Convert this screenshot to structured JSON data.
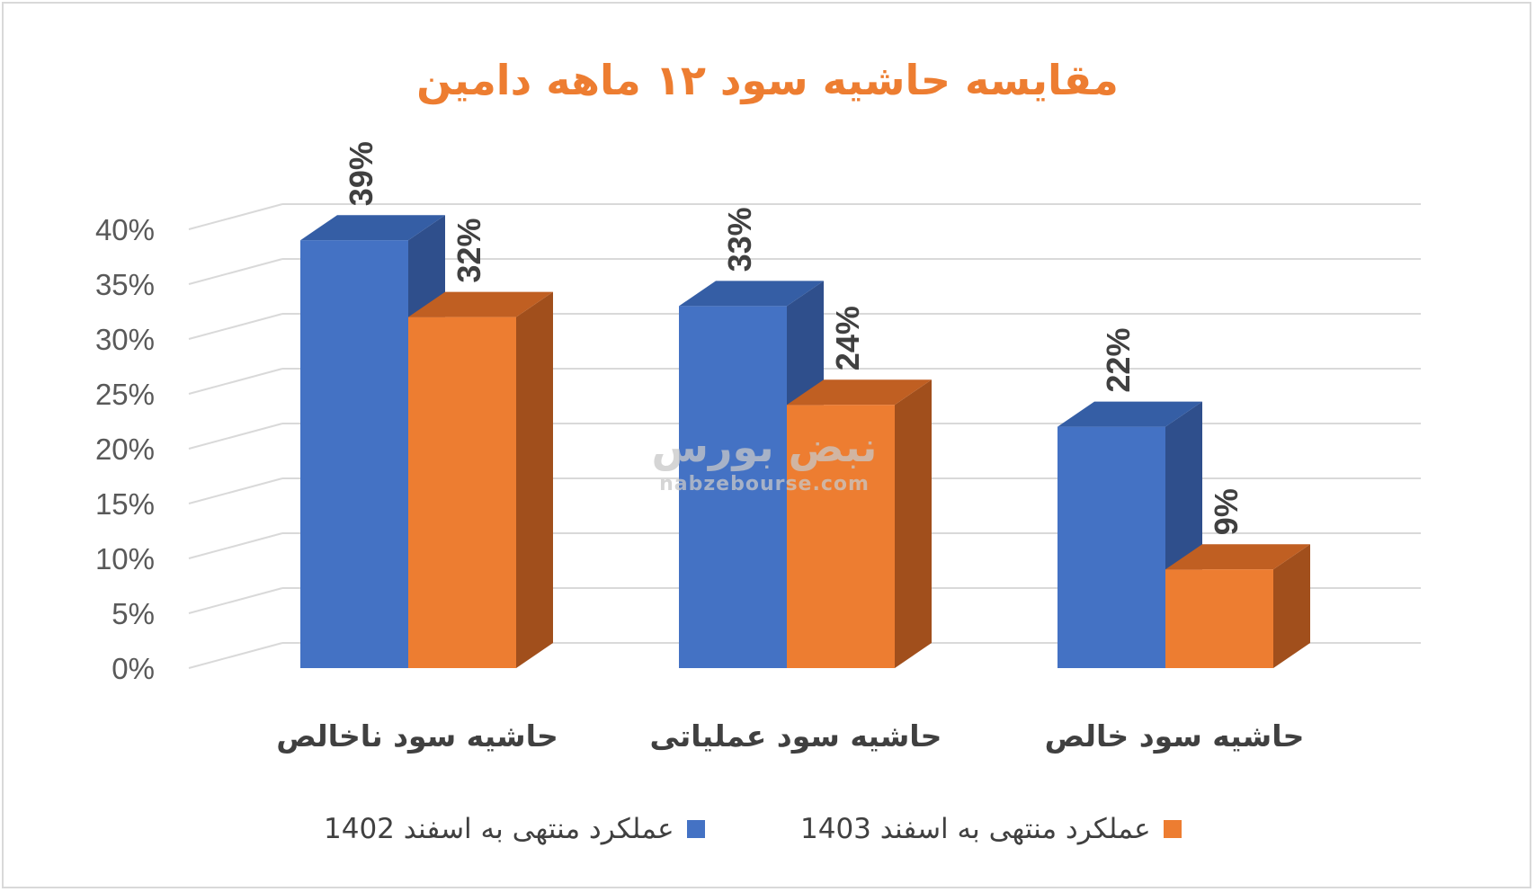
{
  "chart_data": {
    "type": "bar",
    "title": "مقایسه حاشیه سود ۱۲ ماهه دامین",
    "categories": [
      "حاشیه سود ناخالص",
      "حاشیه سود عملیاتی",
      "حاشیه سود خالص"
    ],
    "series": [
      {
        "name": "عملکرد منتهی به اسفند 1402",
        "values": [
          39,
          33,
          22
        ],
        "labels": [
          "39%",
          "33%",
          "22%"
        ],
        "color": "#4472c4"
      },
      {
        "name": "عملکرد منتهی به اسفند 1403",
        "values": [
          32,
          24,
          9
        ],
        "labels": [
          "32%",
          "24%",
          "9%"
        ],
        "color": "#ed7d31"
      }
    ],
    "y_ticks": [
      "0%",
      "5%",
      "10%",
      "15%",
      "20%",
      "25%",
      "30%",
      "35%",
      "40%"
    ],
    "ylim": [
      0,
      40
    ],
    "grid": true,
    "style": "3d-clustered-column",
    "legend_position": "bottom"
  },
  "watermark": {
    "logo": "نبض بورس",
    "site": "nabzebourse.com"
  }
}
